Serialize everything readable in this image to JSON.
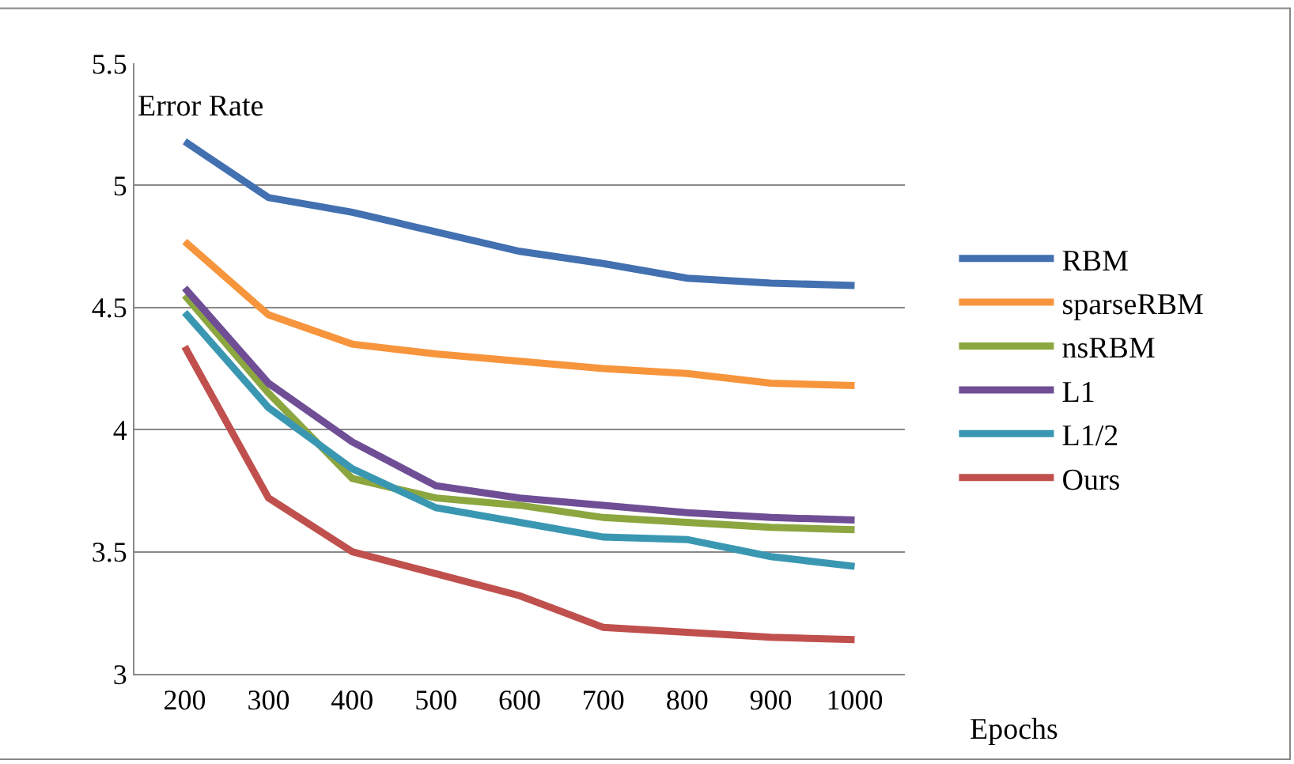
{
  "chart_data": {
    "type": "line",
    "xlabel": "Epochs",
    "ylabel": "Error Rate",
    "categories": [
      "200",
      "300",
      "400",
      "500",
      "600",
      "700",
      "800",
      "900",
      "1000"
    ],
    "ylim": [
      3,
      5.5
    ],
    "yticks": [
      3,
      3.5,
      4,
      4.5,
      5,
      5.5
    ],
    "grid": "y",
    "legend": "right",
    "marker": "none",
    "line_style": "solid",
    "series": [
      {
        "name": "RBM",
        "color": "#4270b0",
        "values": [
          5.18,
          4.95,
          4.89,
          4.81,
          4.73,
          4.68,
          4.62,
          4.6,
          4.59
        ]
      },
      {
        "name": "sparseRBM",
        "color": "#f7953c",
        "values": [
          4.77,
          4.47,
          4.35,
          4.31,
          4.28,
          4.25,
          4.23,
          4.19,
          4.18
        ]
      },
      {
        "name": "nsRBM",
        "color": "#8ca640",
        "values": [
          4.55,
          4.15,
          3.8,
          3.72,
          3.69,
          3.64,
          3.62,
          3.6,
          3.59
        ]
      },
      {
        "name": "L1",
        "color": "#6f4e95",
        "values": [
          4.58,
          4.19,
          3.95,
          3.77,
          3.72,
          3.69,
          3.66,
          3.64,
          3.63
        ]
      },
      {
        "name": "L1/2",
        "color": "#3a97b2",
        "values": [
          4.48,
          4.09,
          3.84,
          3.68,
          3.62,
          3.56,
          3.55,
          3.48,
          3.44
        ]
      },
      {
        "name": "Ours",
        "color": "#c0504d",
        "values": [
          4.34,
          3.72,
          3.5,
          3.41,
          3.32,
          3.19,
          3.17,
          3.15,
          3.14
        ]
      }
    ]
  }
}
